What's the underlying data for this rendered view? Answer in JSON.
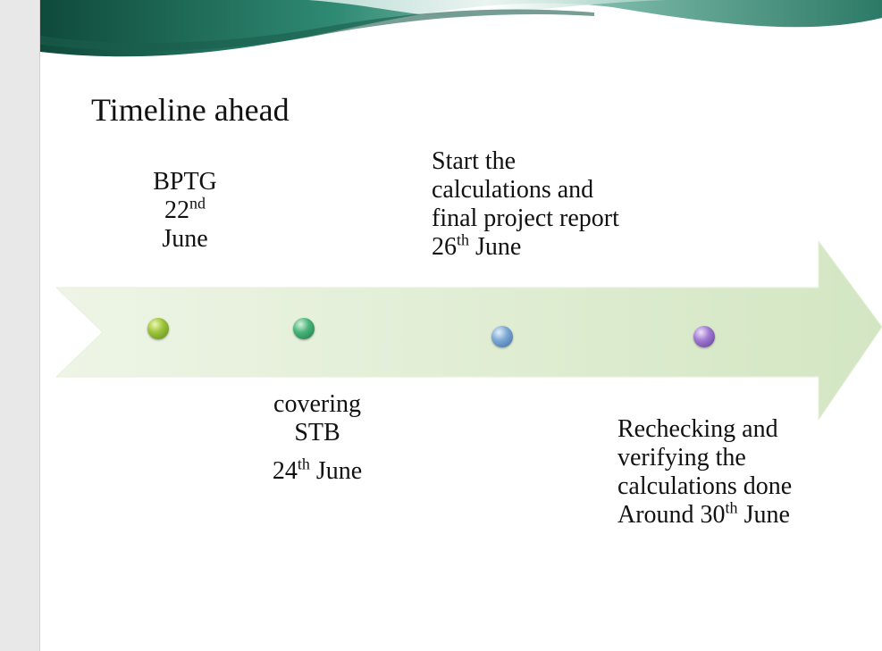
{
  "slide": {
    "title": "Timeline ahead"
  },
  "timeline": {
    "milestones": [
      {
        "line1": "BPTG",
        "date_num": "22",
        "date_sup": "nd",
        "date_rest": "June"
      },
      {
        "line1": "covering",
        "line2": "STB",
        "date_num": "24",
        "date_sup": "th",
        "date_rest": "June"
      },
      {
        "line1": "Start the",
        "line2": "calculations and",
        "line3": "final project report",
        "date_num": "26",
        "date_sup": "th",
        "date_rest": "June"
      },
      {
        "line1": "Rechecking and",
        "line2": "verifying the",
        "line3": "calculations done",
        "date_prefix": "Around 30",
        "date_sup": "th",
        "date_rest": "June"
      }
    ],
    "dot_colors": [
      "#9dc43c",
      "#49b57a",
      "#7ea9d6",
      "#a17ad3"
    ],
    "arrow_color": "#dcebcf"
  }
}
